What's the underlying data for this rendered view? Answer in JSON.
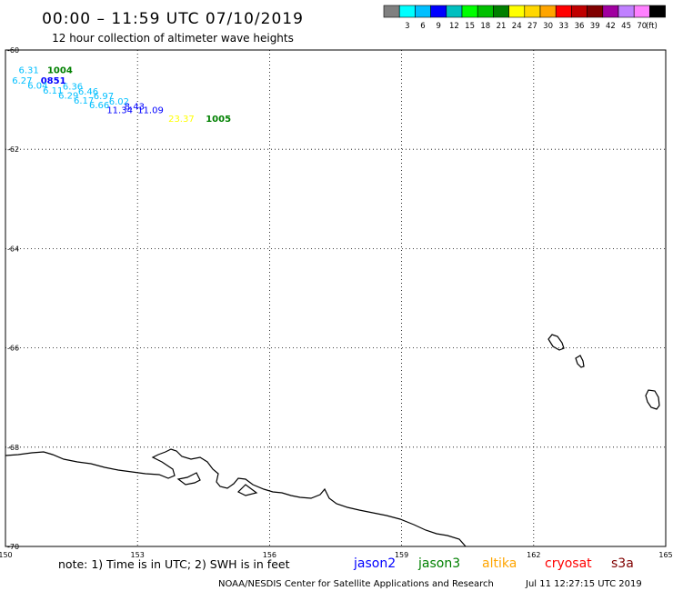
{
  "header": {
    "title": "00:00 – 11:59 UTC 07/10/2019",
    "subtitle": "12 hour collection of altimeter wave heights"
  },
  "legend": {
    "unit": "(ft)",
    "bins": [
      {
        "color": "#808080",
        "label": ""
      },
      {
        "color": "#00ffff",
        "label": "3"
      },
      {
        "color": "#00bfff",
        "label": "6"
      },
      {
        "color": "#0000ff",
        "label": "9"
      },
      {
        "color": "#00bfbf",
        "label": "12"
      },
      {
        "color": "#00ff00",
        "label": "15"
      },
      {
        "color": "#00c000",
        "label": "18"
      },
      {
        "color": "#008000",
        "label": "21"
      },
      {
        "color": "#ffff00",
        "label": "24"
      },
      {
        "color": "#ffd700",
        "label": "27"
      },
      {
        "color": "#ffa500",
        "label": "30"
      },
      {
        "color": "#ff0000",
        "label": "33"
      },
      {
        "color": "#c00000",
        "label": "36"
      },
      {
        "color": "#800000",
        "label": "39"
      },
      {
        "color": "#a000a0",
        "label": "42"
      },
      {
        "color": "#c080ff",
        "label": "45"
      },
      {
        "color": "#ff80ff",
        "label": "70"
      },
      {
        "color": "#000000",
        "label": ""
      }
    ]
  },
  "axes": {
    "lon_labels": [
      "150",
      "153",
      "156",
      "159",
      "162",
      "165"
    ],
    "lat_labels": [
      "-60",
      "-62",
      "-64",
      "-66",
      "-68",
      "-70"
    ]
  },
  "measurements": [
    {
      "text": "6.31",
      "lon": 150.3,
      "lat": -60.47,
      "color": "#00bfff"
    },
    {
      "text": "1004",
      "lon": 150.95,
      "lat": -60.47,
      "color": "#008000",
      "bold": true
    },
    {
      "text": "6.27",
      "lon": 150.15,
      "lat": -60.68,
      "color": "#00bfff"
    },
    {
      "text": "0851",
      "lon": 150.8,
      "lat": -60.68,
      "color": "#0000ff",
      "bold": true
    },
    {
      "text": "6.04",
      "lon": 150.5,
      "lat": -60.78,
      "color": "#00bfff"
    },
    {
      "text": "6.36",
      "lon": 151.3,
      "lat": -60.8,
      "color": "#00bfff"
    },
    {
      "text": "6.11",
      "lon": 150.85,
      "lat": -60.88,
      "color": "#00bfff"
    },
    {
      "text": "6.46",
      "lon": 151.65,
      "lat": -60.9,
      "color": "#00bfff"
    },
    {
      "text": "6.29",
      "lon": 151.2,
      "lat": -60.98,
      "color": "#00bfff"
    },
    {
      "text": "6.97",
      "lon": 152.0,
      "lat": -60.99,
      "color": "#00bfff"
    },
    {
      "text": "6.17",
      "lon": 151.55,
      "lat": -61.08,
      "color": "#00bfff"
    },
    {
      "text": "6.02",
      "lon": 152.35,
      "lat": -61.1,
      "color": "#00bfff"
    },
    {
      "text": "6.66",
      "lon": 151.9,
      "lat": -61.17,
      "color": "#00bfff"
    },
    {
      "text": "8.43",
      "lon": 152.7,
      "lat": -61.2,
      "color": "#0000ff"
    },
    {
      "text": "11.34",
      "lon": 152.3,
      "lat": -61.27,
      "color": "#0000ff"
    },
    {
      "text": "11.09",
      "lon": 153.0,
      "lat": -61.27,
      "color": "#0000ff"
    },
    {
      "text": "23.37",
      "lon": 153.7,
      "lat": -61.45,
      "color": "#ffff00"
    },
    {
      "text": "1005",
      "lon": 154.55,
      "lat": -61.45,
      "color": "#008000",
      "bold": true
    }
  ],
  "footer": {
    "note": "note: 1) Time is in UTC; 2) SWH is in feet",
    "satellites": [
      {
        "name": "jason2",
        "color": "#0000ff"
      },
      {
        "name": "jason3",
        "color": "#008000"
      },
      {
        "name": "altika",
        "color": "#ffa500"
      },
      {
        "name": "cryosat",
        "color": "#ff0000"
      },
      {
        "name": "s3a",
        "color": "#800000"
      }
    ],
    "credit": "NOAA/NESDIS Center for Satellite Applications and Research",
    "timestamp": "Jul 11 12:27:15 UTC 2019"
  }
}
